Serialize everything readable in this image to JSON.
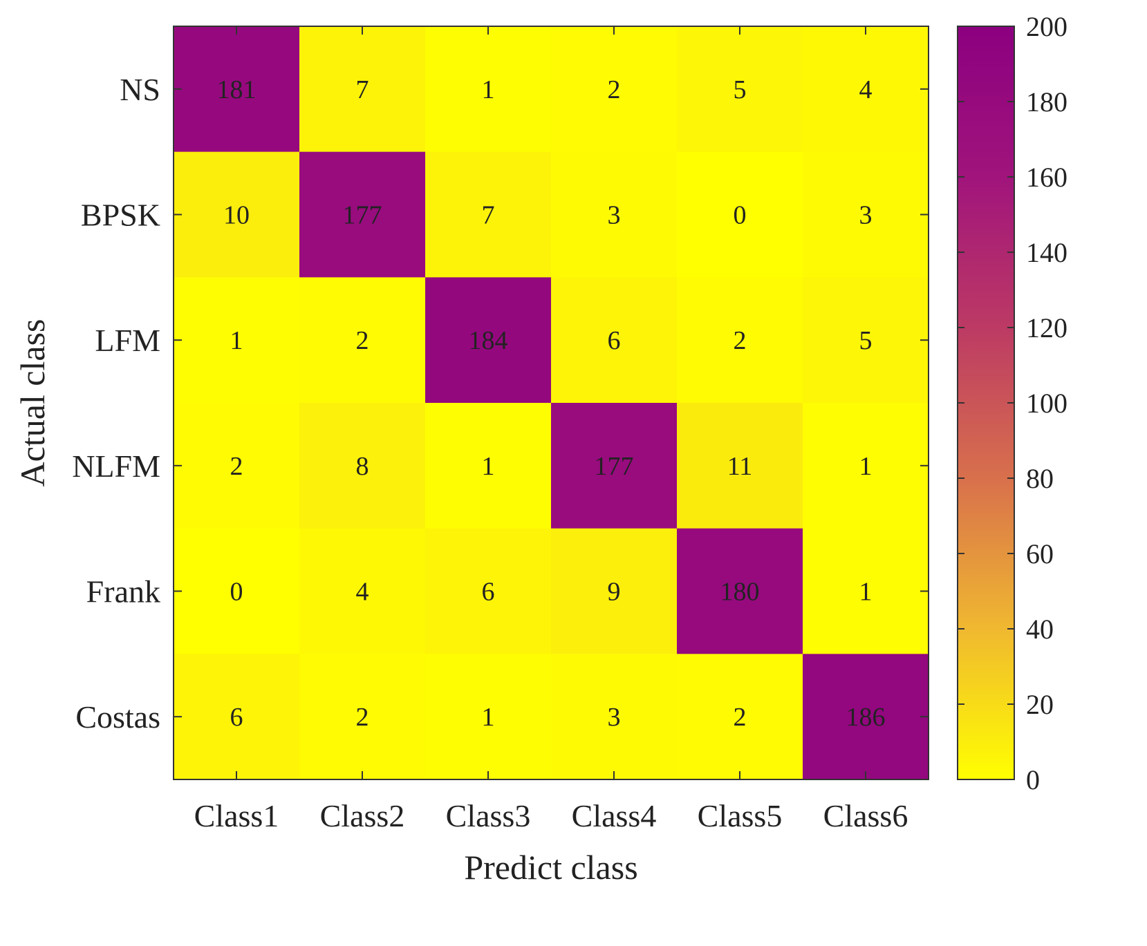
{
  "chart_data": {
    "type": "heatmap",
    "title": "",
    "xlabel": "Predict class",
    "ylabel": "Actual class",
    "x_categories": [
      "Class1",
      "Class2",
      "Class3",
      "Class4",
      "Class5",
      "Class6"
    ],
    "y_categories": [
      "NS",
      "BPSK",
      "LFM",
      "NLFM",
      "Frank",
      "Costas"
    ],
    "values": [
      [
        181,
        7,
        1,
        2,
        5,
        4
      ],
      [
        10,
        177,
        7,
        3,
        0,
        3
      ],
      [
        1,
        2,
        184,
        6,
        2,
        5
      ],
      [
        2,
        8,
        1,
        177,
        11,
        1
      ],
      [
        0,
        4,
        6,
        9,
        180,
        1
      ],
      [
        6,
        2,
        1,
        3,
        2,
        186
      ]
    ],
    "colorbar": {
      "min": 0,
      "max": 200,
      "ticks": [
        0,
        20,
        40,
        60,
        80,
        100,
        120,
        140,
        160,
        180,
        200
      ],
      "colormap": [
        "#ffff00",
        "#f0b830",
        "#d8704c",
        "#bc3a64",
        "#a0147c",
        "#8c0080"
      ]
    },
    "grid": false,
    "legend": "colorbar-right"
  }
}
